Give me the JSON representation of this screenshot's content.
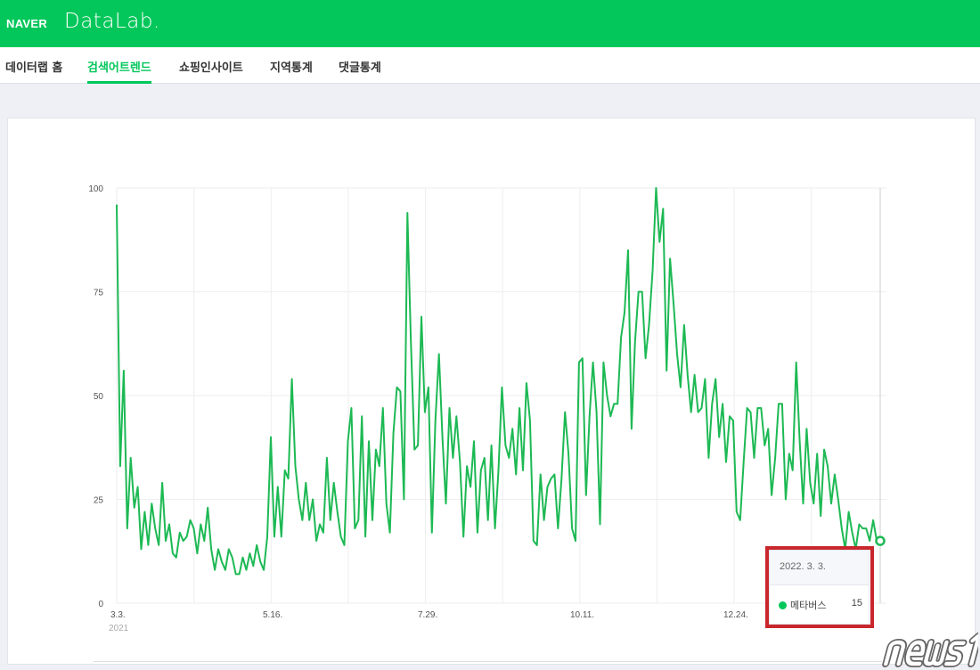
{
  "header": {
    "brand": "NAVER",
    "product": "DataLab."
  },
  "nav": {
    "items": [
      {
        "label": "데이터랩 홈",
        "active": false
      },
      {
        "label": "검색어트렌드",
        "active": true
      },
      {
        "label": "쇼핑인사이트",
        "active": false
      },
      {
        "label": "지역통계",
        "active": false
      },
      {
        "label": "댓글통계",
        "active": false
      }
    ]
  },
  "colors": {
    "brand": "#03c75a",
    "series": "#1db954",
    "highlight": "#c8272c"
  },
  "tooltip": {
    "date": "2022. 3. 3.",
    "series": "메타버스",
    "value": "15"
  },
  "watermark": "news1",
  "chart_data": {
    "type": "line",
    "x_start": "2021-03-03",
    "x_end": "2022-03-03",
    "x_tick_labels": [
      "3.3.",
      "5.16.",
      "7.29.",
      "10.11.",
      "12.24."
    ],
    "x_year_label": "2021",
    "y_ticks": [
      "0",
      "25",
      "50",
      "75",
      "100"
    ],
    "ylim": [
      0,
      100
    ],
    "grid": true,
    "series": [
      {
        "name": "메타버스",
        "values": [
          96,
          33,
          56,
          18,
          35,
          23,
          28,
          13,
          22,
          14,
          24,
          18,
          14,
          29,
          15,
          19,
          12,
          11,
          17,
          15,
          16,
          20,
          18,
          12,
          19,
          15,
          23,
          13,
          8,
          13,
          10,
          8,
          13,
          11,
          7,
          7,
          11,
          8,
          12,
          9,
          14,
          10,
          8,
          16,
          40,
          16,
          28,
          16,
          32,
          30,
          54,
          33,
          25,
          20,
          29,
          20,
          25,
          15,
          19,
          17,
          35,
          20,
          29,
          22,
          16,
          14,
          39,
          47,
          18,
          20,
          45,
          16,
          39,
          20,
          37,
          33,
          47,
          24,
          17,
          41,
          52,
          51,
          25,
          94,
          63,
          37,
          38,
          69,
          46,
          52,
          17,
          44,
          60,
          40,
          24,
          47,
          35,
          45,
          34,
          16,
          33,
          28,
          39,
          17,
          32,
          35,
          20,
          38,
          18,
          32,
          52,
          38,
          35,
          42,
          31,
          47,
          32,
          53,
          44,
          15,
          14,
          31,
          20,
          28,
          30,
          31,
          18,
          30,
          46,
          36,
          18,
          15,
          58,
          59,
          26,
          45,
          58,
          46,
          19,
          58,
          50,
          45,
          48,
          48,
          64,
          70,
          85,
          42,
          63,
          75,
          75,
          59,
          67,
          80,
          100,
          87,
          95,
          56,
          83,
          72,
          60,
          52,
          67,
          55,
          46,
          55,
          46,
          47,
          54,
          35,
          48,
          54,
          40,
          48,
          34,
          45,
          44,
          22,
          20,
          34,
          47,
          46,
          35,
          47,
          47,
          38,
          42,
          26,
          35,
          48,
          48,
          25,
          36,
          32,
          58,
          39,
          24,
          42,
          29,
          24,
          36,
          21,
          37,
          33,
          24,
          31,
          25,
          18,
          13,
          22,
          17,
          13,
          19,
          18,
          18,
          15,
          20,
          15,
          15
        ]
      }
    ]
  }
}
